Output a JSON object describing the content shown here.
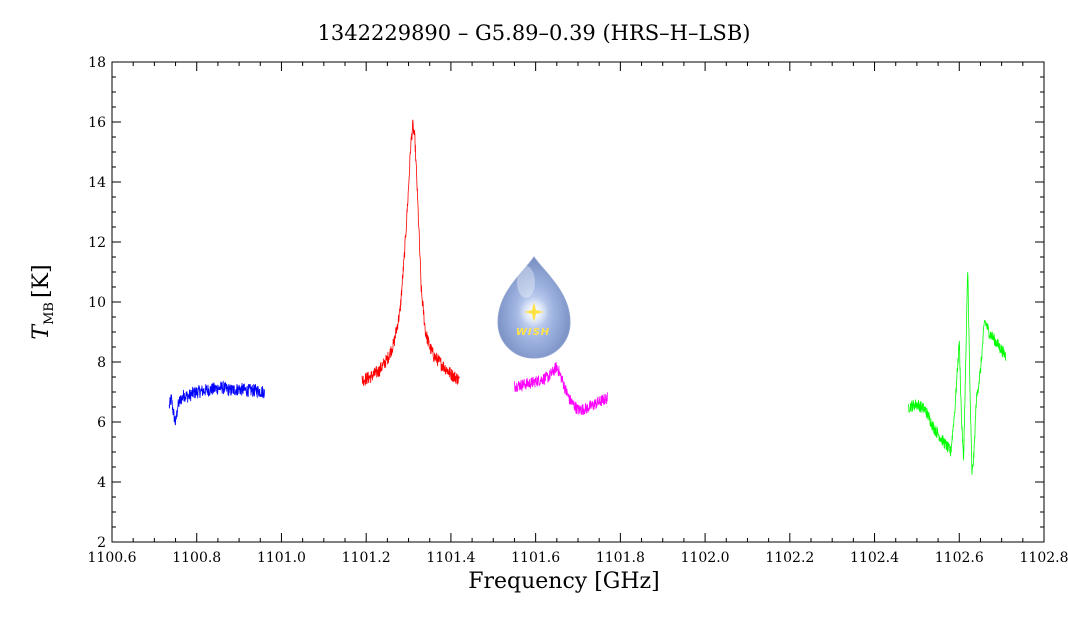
{
  "chart_data": {
    "type": "line",
    "title": "1342229890 – G5.89–0.39 (HRS–H–LSB)",
    "xlabel": "Frequency [GHz]",
    "ylabel_main": "T",
    "ylabel_sub": "MB",
    "ylabel_unit": "[K]",
    "xlim": [
      1100.6,
      1102.8
    ],
    "ylim": [
      2,
      18
    ],
    "xticks": [
      1100.6,
      1100.8,
      1101.0,
      1101.2,
      1101.4,
      1101.6,
      1101.8,
      1102.0,
      1102.2,
      1102.4,
      1102.6,
      1102.8
    ],
    "xtick_labels": [
      "1100.6",
      "1100.8",
      "1101.0",
      "1101.2",
      "1101.4",
      "1101.6",
      "1101.8",
      "1102.0",
      "1102.2",
      "1102.4",
      "1102.6",
      "1102.8"
    ],
    "yticks": [
      2,
      4,
      6,
      8,
      10,
      12,
      14,
      16,
      18
    ],
    "ytick_labels": [
      "2",
      "4",
      "6",
      "8",
      "10",
      "12",
      "14",
      "16",
      "18"
    ],
    "grid": false,
    "series": [
      {
        "color": "#0000ff",
        "x": [
          1100.735,
          1100.74,
          1100.745,
          1100.75,
          1100.755,
          1100.76,
          1100.77,
          1100.78,
          1100.79,
          1100.8,
          1100.82,
          1100.84,
          1100.86,
          1100.88,
          1100.9,
          1100.92,
          1100.94,
          1100.96
        ],
        "y": [
          6.5,
          6.8,
          6.3,
          5.95,
          6.5,
          6.7,
          6.9,
          6.85,
          6.95,
          7.0,
          7.05,
          7.1,
          7.15,
          7.05,
          7.1,
          7.05,
          7.05,
          7.0
        ],
        "noise": 0.22
      },
      {
        "color": "#ff0000",
        "x": [
          1101.19,
          1101.21,
          1101.23,
          1101.25,
          1101.265,
          1101.28,
          1101.29,
          1101.3,
          1101.305,
          1101.31,
          1101.315,
          1101.32,
          1101.325,
          1101.33,
          1101.34,
          1101.35,
          1101.36,
          1101.38,
          1101.4,
          1101.42
        ],
        "y": [
          7.4,
          7.5,
          7.7,
          8.1,
          8.6,
          9.7,
          11.5,
          13.8,
          15.2,
          15.9,
          15.4,
          13.9,
          12.2,
          10.4,
          9.0,
          8.5,
          8.2,
          7.9,
          7.6,
          7.4
        ],
        "noise": 0.22
      },
      {
        "color": "#ff00ff",
        "x": [
          1101.55,
          1101.57,
          1101.59,
          1101.61,
          1101.63,
          1101.64,
          1101.65,
          1101.66,
          1101.67,
          1101.68,
          1101.7,
          1101.72,
          1101.74,
          1101.77
        ],
        "y": [
          7.2,
          7.25,
          7.3,
          7.4,
          7.5,
          7.65,
          7.85,
          7.5,
          7.1,
          6.75,
          6.4,
          6.45,
          6.6,
          6.8
        ],
        "noise": 0.2
      },
      {
        "color": "#00ff00",
        "x": [
          1102.48,
          1102.5,
          1102.52,
          1102.54,
          1102.56,
          1102.58,
          1102.59,
          1102.6,
          1102.605,
          1102.61,
          1102.615,
          1102.62,
          1102.625,
          1102.63,
          1102.635,
          1102.64,
          1102.65,
          1102.66,
          1102.67,
          1102.68,
          1102.7,
          1102.71
        ],
        "y": [
          6.5,
          6.6,
          6.4,
          5.8,
          5.4,
          5.0,
          6.5,
          8.7,
          6.2,
          4.7,
          7.8,
          11.2,
          7.2,
          4.2,
          5.0,
          6.7,
          7.7,
          9.4,
          9.0,
          8.8,
          8.4,
          8.2
        ],
        "noise": 0.2
      }
    ]
  },
  "logo": {
    "icon": "wish-droplet-logo",
    "text": "WISH"
  }
}
